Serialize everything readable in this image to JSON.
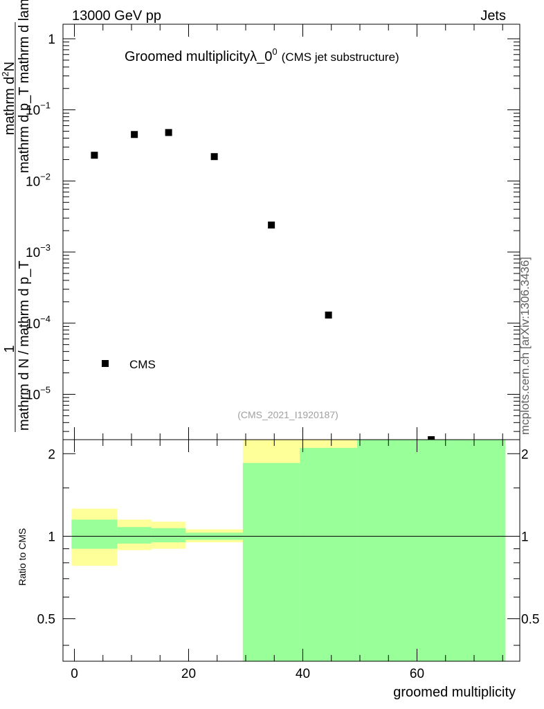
{
  "header": {
    "left": "13000 GeV pp",
    "right": "Jets",
    "side_label": "mcplots.cern.ch [arXiv:1306.3436]"
  },
  "chart_data": [
    {
      "type": "scatter",
      "title": "Groomed multiplicityλ_0",
      "title_sup": "0",
      "title_note": "(CMS jet substructure)",
      "analysis_label": "(CMS_2021_I1920187)",
      "ylabel_numerator": "1",
      "ylabel_frac1_num": "mathrm d",
      "ylabel_frac1_num_sup": "2",
      "ylabel_frac1_num_rest": "N",
      "ylabel_frac1_den": "mathrm d p_T mathrm d lambda",
      "ylabel_denominator": "mathrm d N / mathrm d p_T",
      "yscale": "log",
      "ylim": [
        2.3e-06,
        1.6
      ],
      "xlim": [
        -2,
        78
      ],
      "ytick_labels": [
        {
          "value": 1,
          "base": "1",
          "exp": ""
        },
        {
          "value": 0.1,
          "base": "10",
          "exp": "−1"
        },
        {
          "value": 0.01,
          "base": "10",
          "exp": "−2"
        },
        {
          "value": 0.001,
          "base": "10",
          "exp": "−3"
        },
        {
          "value": 0.0001,
          "base": "10",
          "exp": "−4"
        },
        {
          "value": 1e-05,
          "base": "10",
          "exp": "−5"
        }
      ],
      "legend": {
        "label": "CMS",
        "position": "bottom-left"
      },
      "series": [
        {
          "name": "CMS",
          "color": "#000000",
          "x": [
            3.5,
            10.5,
            16.5,
            24.5,
            34.5,
            44.5,
            62.5
          ],
          "y": [
            0.023,
            0.045,
            0.048,
            0.022,
            0.0024,
            0.00013,
            2.3e-06
          ]
        }
      ]
    },
    {
      "type": "area",
      "ylabel": "Ratio to CMS",
      "xlabel": "groomed multiplicity",
      "xlim": [
        -2,
        78
      ],
      "ylim": [
        0.35,
        2.25
      ],
      "xtick_labels": [
        "0",
        "20",
        "40",
        "60"
      ],
      "ytick_labels": [
        "0.5",
        "1",
        "2"
      ],
      "reference_line": 1,
      "bands": [
        {
          "name": "stat",
          "color": "#99ff99",
          "bins": [
            {
              "x0": -0.5,
              "x1": 7.5,
              "lo": 0.9,
              "hi": 1.15
            },
            {
              "x0": 7.5,
              "x1": 13.5,
              "lo": 0.94,
              "hi": 1.08
            },
            {
              "x0": 13.5,
              "x1": 19.5,
              "lo": 0.95,
              "hi": 1.07
            },
            {
              "x0": 19.5,
              "x1": 29.5,
              "lo": 0.97,
              "hi": 1.03
            },
            {
              "x0": 29.5,
              "x1": 39.5,
              "lo": 0.35,
              "hi": 1.85
            },
            {
              "x0": 39.5,
              "x1": 49.5,
              "lo": 0.35,
              "hi": 2.1
            },
            {
              "x0": 49.5,
              "x1": 75.5,
              "lo": 0.35,
              "hi": 2.25
            }
          ]
        },
        {
          "name": "stat+syst",
          "color": "#ffff99",
          "bins": [
            {
              "x0": -0.5,
              "x1": 7.5,
              "lo": 0.78,
              "hi": 1.26
            },
            {
              "x0": 7.5,
              "x1": 13.5,
              "lo": 0.89,
              "hi": 1.15
            },
            {
              "x0": 13.5,
              "x1": 19.5,
              "lo": 0.9,
              "hi": 1.13
            },
            {
              "x0": 19.5,
              "x1": 29.5,
              "lo": 0.95,
              "hi": 1.06
            },
            {
              "x0": 29.5,
              "x1": 39.5,
              "lo": 0.35,
              "hi": 2.25
            },
            {
              "x0": 39.5,
              "x1": 49.5,
              "lo": 0.35,
              "hi": 2.25
            },
            {
              "x0": 49.5,
              "x1": 75.5,
              "lo": 0.35,
              "hi": 2.25
            }
          ]
        }
      ]
    }
  ]
}
